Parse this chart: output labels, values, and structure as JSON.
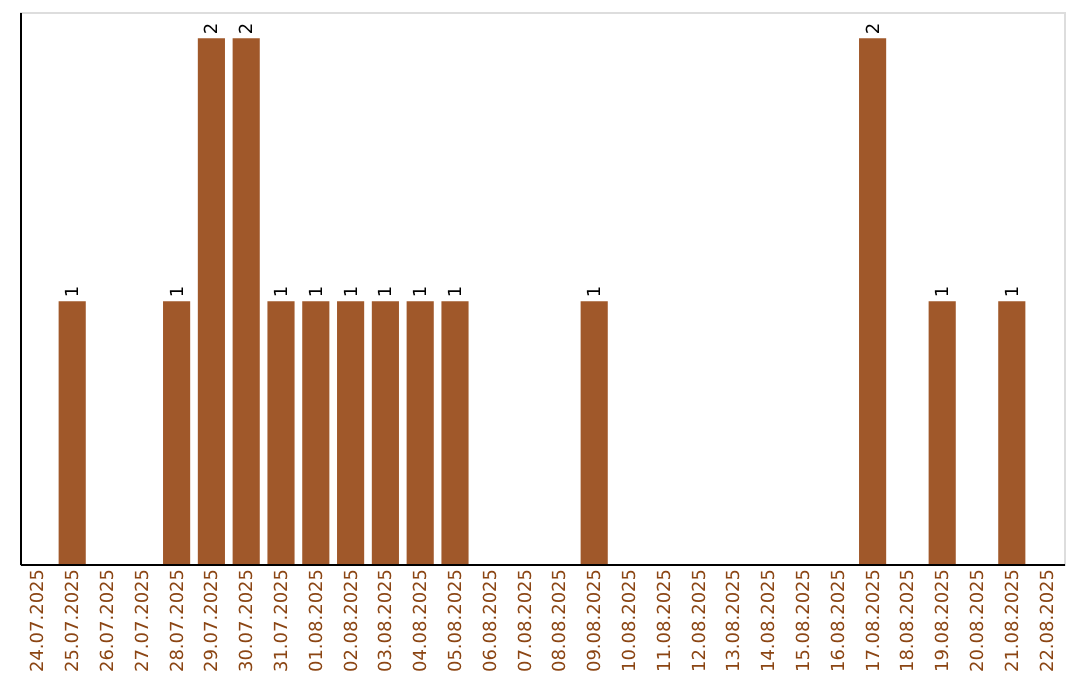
{
  "chart_data": {
    "type": "bar",
    "categories": [
      "24.07.2025",
      "25.07.2025",
      "26.07.2025",
      "27.07.2025",
      "28.07.2025",
      "29.07.2025",
      "30.07.2025",
      "31.07.2025",
      "01.08.2025",
      "02.08.2025",
      "03.08.2025",
      "04.08.2025",
      "05.08.2025",
      "06.08.2025",
      "07.08.2025",
      "08.08.2025",
      "09.08.2025",
      "10.08.2025",
      "11.08.2025",
      "12.08.2025",
      "13.08.2025",
      "14.08.2025",
      "15.08.2025",
      "16.08.2025",
      "17.08.2025",
      "18.08.2025",
      "19.08.2025",
      "20.08.2025",
      "21.08.2025",
      "22.08.2025"
    ],
    "values": [
      0,
      1,
      0,
      0,
      1,
      2,
      2,
      1,
      1,
      1,
      1,
      1,
      1,
      0,
      0,
      0,
      1,
      0,
      0,
      0,
      0,
      0,
      0,
      0,
      2,
      0,
      1,
      0,
      1,
      0
    ],
    "color": "#a0582a",
    "ylim": [
      0,
      2.1
    ],
    "tick_labels": "x",
    "value_labels": [
      null,
      "1",
      null,
      null,
      "1",
      "2",
      "2",
      "1",
      "1",
      "1",
      "1",
      "1",
      "1",
      null,
      null,
      null,
      "1",
      null,
      null,
      null,
      null,
      null,
      null,
      null,
      "2",
      null,
      "1",
      null,
      "1",
      null
    ],
    "grid": false
  }
}
